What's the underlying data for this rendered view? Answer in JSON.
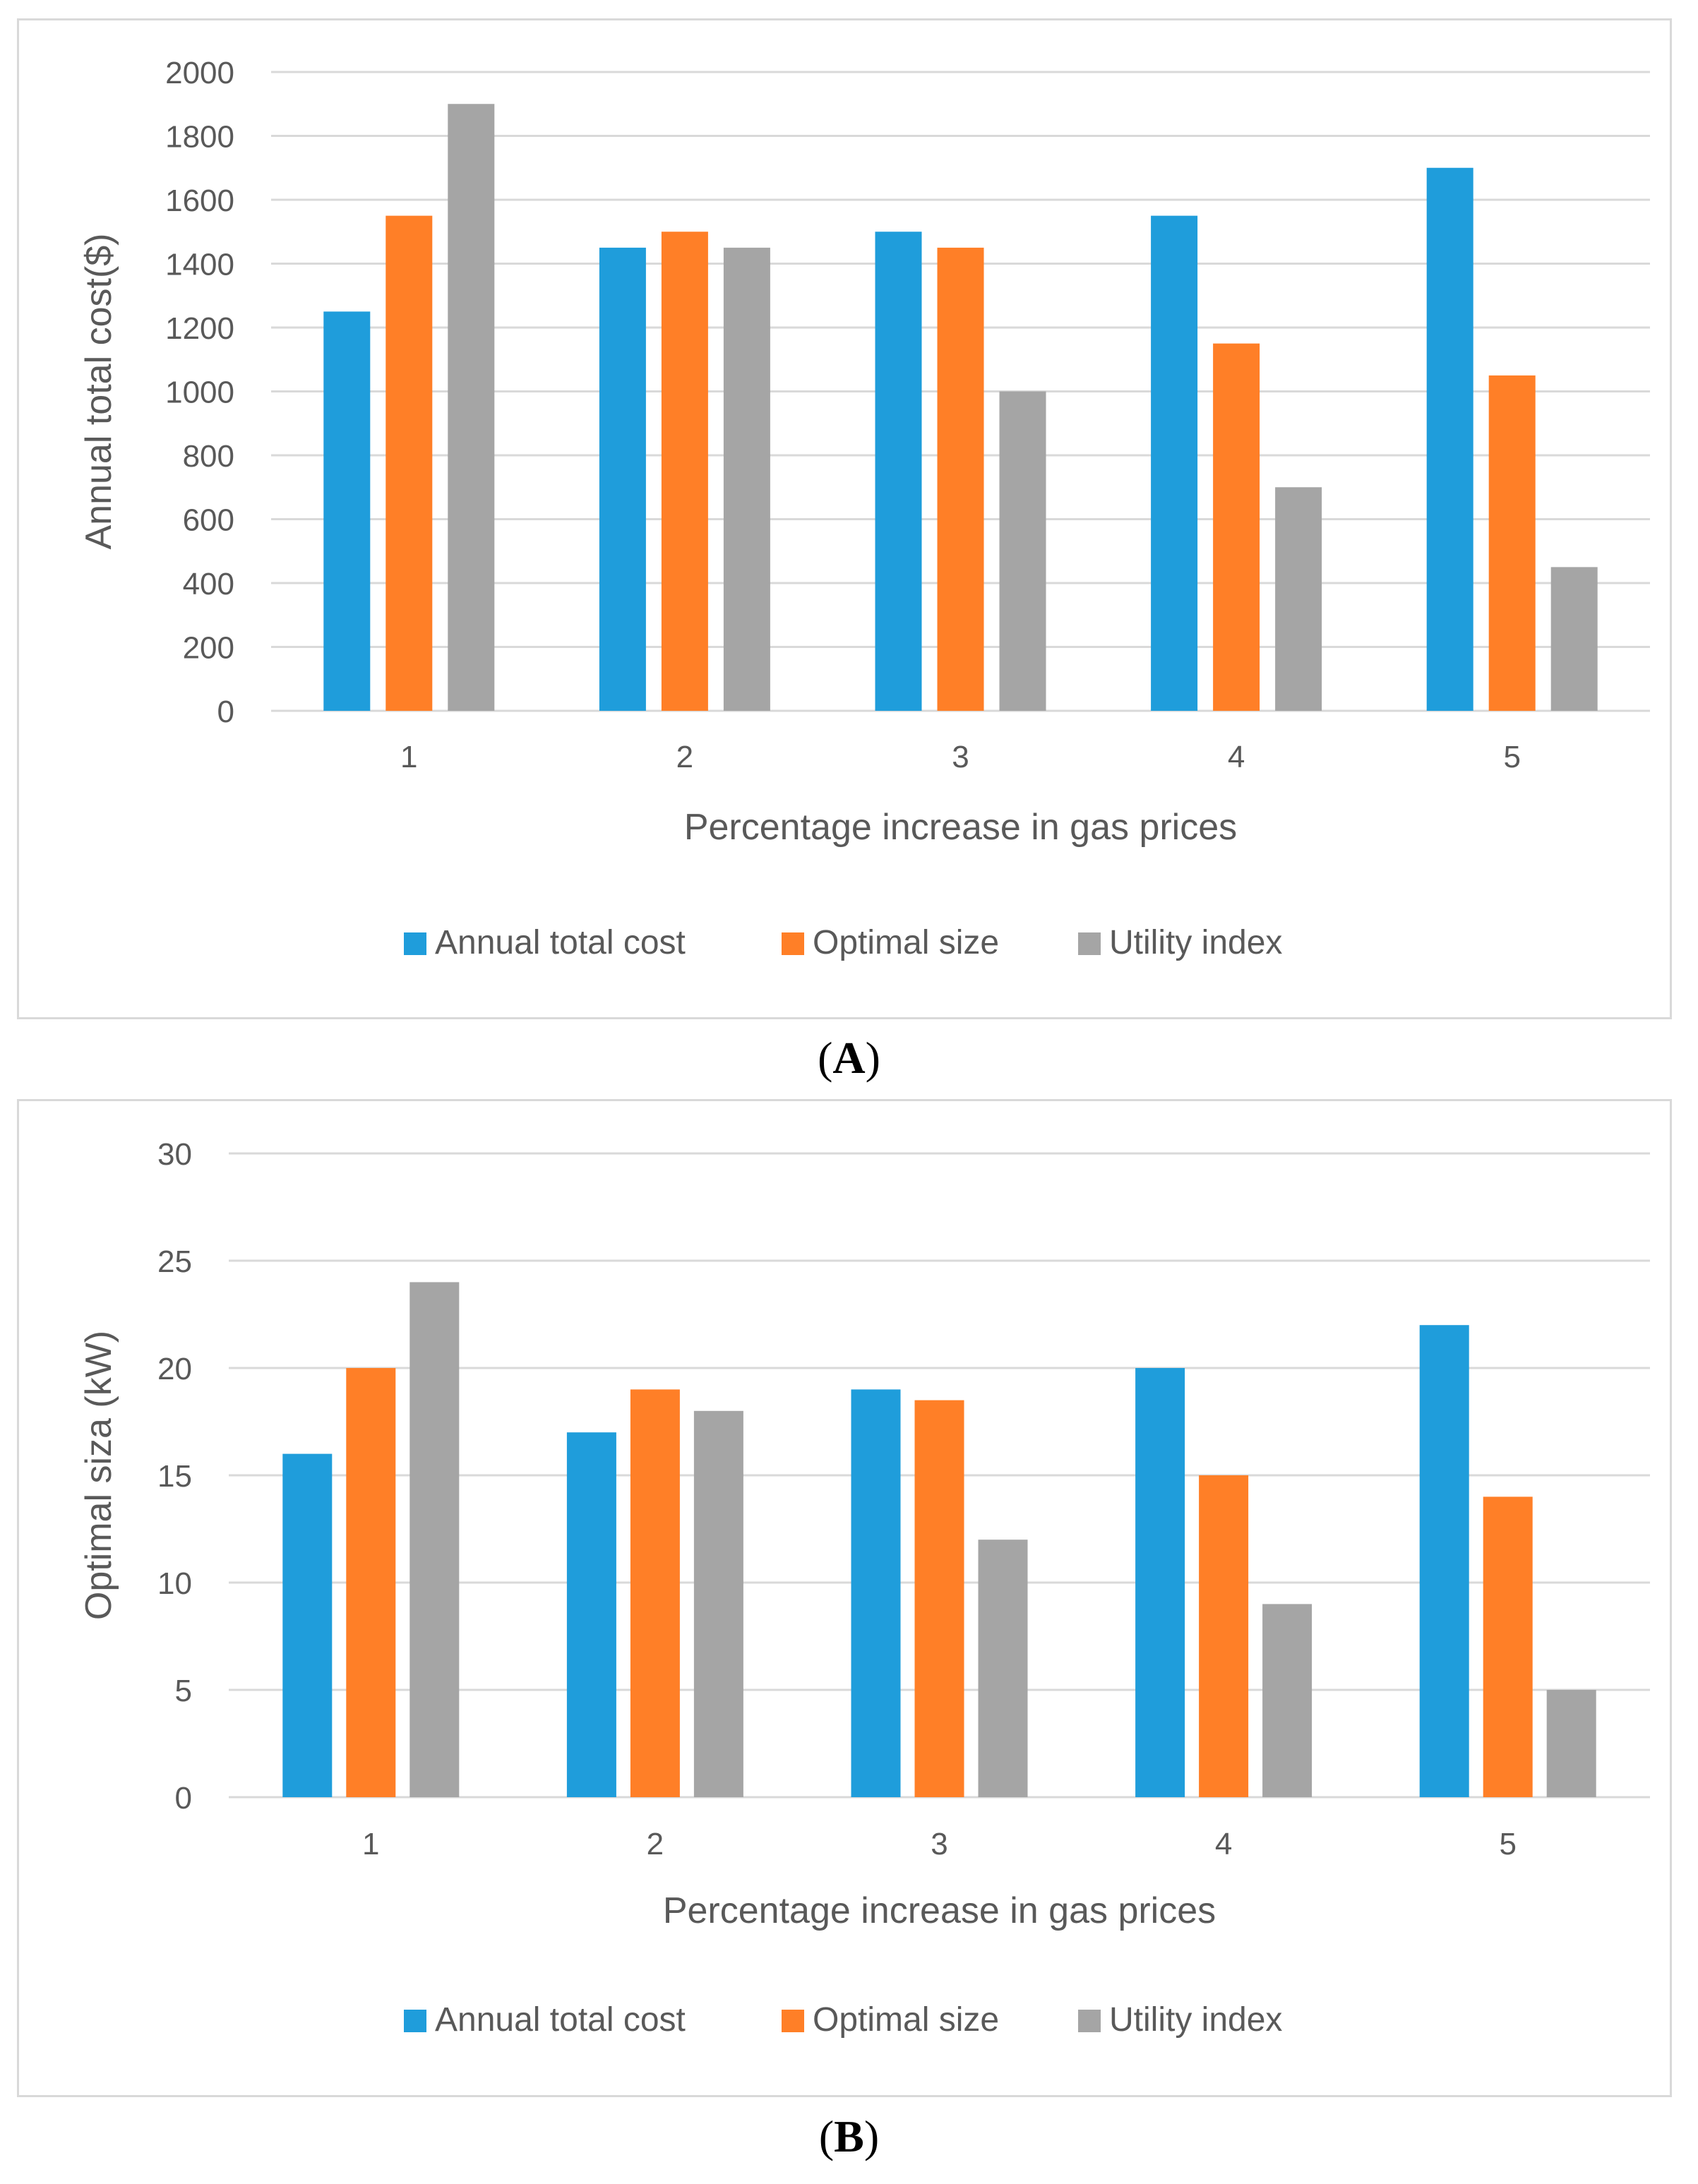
{
  "colors": {
    "annual_total_cost": "#1F9DDB",
    "optimal_size": "#FF7F27",
    "utility_index": "#A5A5A5",
    "grid": "#D9D9D9",
    "text": "#595959"
  },
  "panels": [
    {
      "label_open": "(",
      "label_letter": "A",
      "label_close": ")"
    },
    {
      "label_open": "(",
      "label_letter": "B",
      "label_close": ")"
    }
  ],
  "chart_data": [
    {
      "type": "bar",
      "title": "",
      "xlabel": "Percentage increase in gas prices",
      "ylabel": "Annual total cost($)",
      "categories": [
        "1",
        "2",
        "3",
        "4",
        "5"
      ],
      "ylim": [
        0,
        2000
      ],
      "yticks": [
        0,
        200,
        400,
        600,
        800,
        1000,
        1200,
        1400,
        1600,
        1800,
        2000
      ],
      "grid": true,
      "legend": "bottom-center",
      "series": [
        {
          "name": "Annual total cost",
          "color": "#1F9DDB",
          "values": [
            1250,
            1450,
            1500,
            1550,
            1700
          ]
        },
        {
          "name": "Optimal size",
          "color": "#FF7F27",
          "values": [
            1550,
            1500,
            1450,
            1150,
            1050
          ]
        },
        {
          "name": "Utility index",
          "color": "#A5A5A5",
          "values": [
            1900,
            1450,
            1000,
            700,
            450
          ]
        }
      ]
    },
    {
      "type": "bar",
      "title": "",
      "xlabel": "Percentage increase in gas prices",
      "ylabel": "Optimal siza (kW)",
      "categories": [
        "1",
        "2",
        "3",
        "4",
        "5"
      ],
      "ylim": [
        0,
        30
      ],
      "yticks": [
        0,
        5,
        10,
        15,
        20,
        25,
        30
      ],
      "grid": true,
      "legend": "bottom-center",
      "series": [
        {
          "name": "Annual total cost",
          "color": "#1F9DDB",
          "values": [
            16,
            17,
            19,
            20,
            22
          ]
        },
        {
          "name": "Optimal size",
          "color": "#FF7F27",
          "values": [
            20,
            19,
            18.5,
            15,
            14
          ]
        },
        {
          "name": "Utility index",
          "color": "#A5A5A5",
          "values": [
            24,
            18,
            12,
            9,
            5
          ]
        }
      ]
    }
  ]
}
